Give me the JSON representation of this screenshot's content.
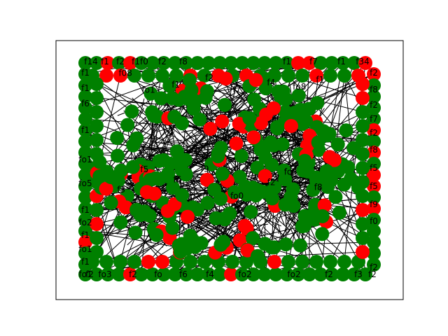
{
  "graph": {
    "colors": {
      "node_primary": "#008000",
      "node_secondary": "#ff0000",
      "edge": "#000000",
      "frame": "#000000",
      "background": "#ffffff"
    },
    "labels_top": [
      "f14",
      "f1",
      "f2",
      "f1f0",
      "f2",
      "f8",
      "f1",
      "f7",
      "f1",
      "f34"
    ],
    "labels_left": [
      "f1",
      "f1",
      "f6",
      "f1",
      "fo1",
      "fo5",
      "f1",
      "fo2",
      "f1",
      "fo1",
      "f1",
      "fo1"
    ],
    "labels_right": [
      "f2",
      "f8",
      "f2",
      "f7",
      "f2",
      "f8",
      "f5",
      "f5",
      "f9",
      "f0",
      "f2"
    ],
    "labels_bottom": [
      "f2",
      "fo3",
      "f2",
      "fo",
      "f6",
      "f4",
      "fo2",
      "fo2",
      "f2",
      "f3",
      "f2"
    ],
    "labels_inner": [
      "f08",
      "fo1",
      "f1",
      "f2",
      "f7",
      "f4",
      "fo8",
      "f1",
      "f3",
      "f5",
      "f6",
      "f9",
      "fo0",
      "f2",
      "fo4",
      "f8"
    ]
  }
}
